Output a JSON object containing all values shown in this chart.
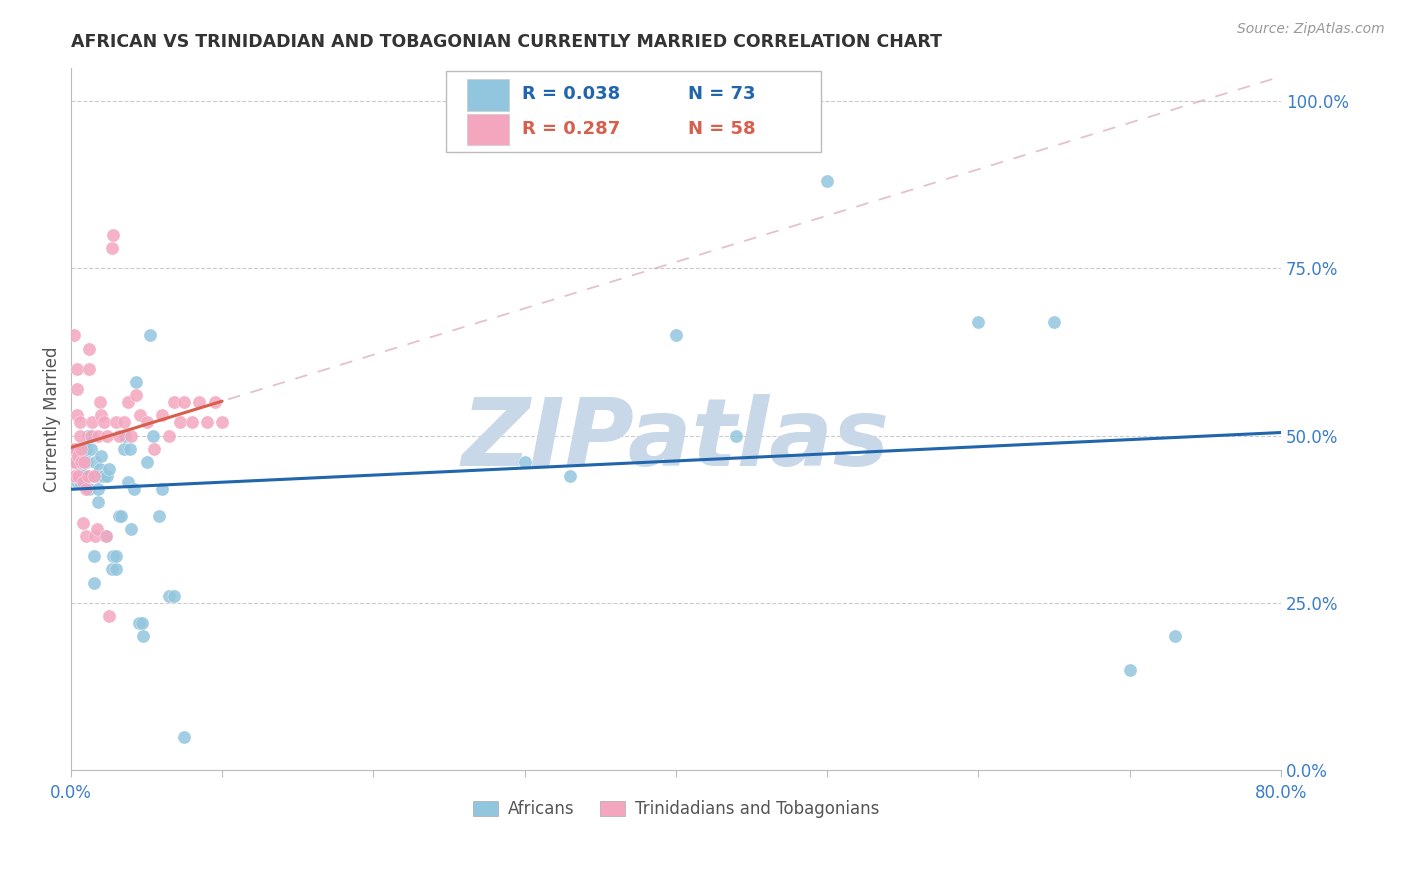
{
  "title": "AFRICAN VS TRINIDADIAN AND TOBAGONIAN CURRENTLY MARRIED CORRELATION CHART",
  "source": "Source: ZipAtlas.com",
  "ylabel": "Currently Married",
  "xlim": [
    0.0,
    0.8
  ],
  "ylim": [
    0.0,
    1.05
  ],
  "color_african": "#92c5de",
  "color_trinidadian": "#f4a6bf",
  "color_african_line": "#2166ac",
  "color_trinidadian_line": "#d6604d",
  "color_trinidadian_dashed": "#d6a0b0",
  "watermark": "ZIPatlas",
  "watermark_color": "#c8d8e8",
  "african_x": [
    0.001,
    0.002,
    0.002,
    0.003,
    0.003,
    0.004,
    0.004,
    0.004,
    0.005,
    0.005,
    0.005,
    0.006,
    0.006,
    0.006,
    0.007,
    0.007,
    0.008,
    0.008,
    0.009,
    0.009,
    0.01,
    0.01,
    0.011,
    0.012,
    0.012,
    0.013,
    0.014,
    0.015,
    0.015,
    0.016,
    0.017,
    0.018,
    0.018,
    0.019,
    0.02,
    0.02,
    0.021,
    0.022,
    0.023,
    0.024,
    0.025,
    0.027,
    0.028,
    0.03,
    0.03,
    0.032,
    0.033,
    0.035,
    0.036,
    0.038,
    0.039,
    0.04,
    0.042,
    0.043,
    0.045,
    0.047,
    0.048,
    0.05,
    0.052,
    0.054,
    0.058,
    0.06,
    0.065,
    0.068,
    0.075,
    0.3,
    0.33,
    0.4,
    0.44,
    0.5,
    0.6,
    0.65,
    0.7,
    0.73
  ],
  "african_y": [
    0.46,
    0.47,
    0.46,
    0.44,
    0.48,
    0.43,
    0.46,
    0.47,
    0.44,
    0.46,
    0.48,
    0.43,
    0.45,
    0.46,
    0.47,
    0.48,
    0.44,
    0.46,
    0.43,
    0.47,
    0.46,
    0.48,
    0.5,
    0.42,
    0.44,
    0.48,
    0.5,
    0.32,
    0.28,
    0.46,
    0.44,
    0.4,
    0.42,
    0.45,
    0.44,
    0.47,
    0.44,
    0.44,
    0.35,
    0.44,
    0.45,
    0.3,
    0.32,
    0.3,
    0.32,
    0.38,
    0.38,
    0.48,
    0.5,
    0.43,
    0.48,
    0.36,
    0.42,
    0.58,
    0.22,
    0.22,
    0.2,
    0.46,
    0.65,
    0.5,
    0.38,
    0.42,
    0.26,
    0.26,
    0.05,
    0.46,
    0.44,
    0.65,
    0.5,
    0.88,
    0.67,
    0.67,
    0.15,
    0.2
  ],
  "trinidadian_x": [
    0.001,
    0.001,
    0.002,
    0.002,
    0.002,
    0.003,
    0.003,
    0.003,
    0.004,
    0.004,
    0.004,
    0.005,
    0.005,
    0.006,
    0.006,
    0.007,
    0.007,
    0.008,
    0.008,
    0.009,
    0.01,
    0.01,
    0.011,
    0.012,
    0.012,
    0.013,
    0.014,
    0.015,
    0.016,
    0.017,
    0.018,
    0.019,
    0.02,
    0.022,
    0.023,
    0.024,
    0.025,
    0.027,
    0.028,
    0.03,
    0.032,
    0.035,
    0.038,
    0.04,
    0.043,
    0.046,
    0.05,
    0.055,
    0.06,
    0.065,
    0.068,
    0.072,
    0.075,
    0.08,
    0.085,
    0.09,
    0.095,
    0.1
  ],
  "trinidadian_y": [
    0.46,
    0.48,
    0.44,
    0.46,
    0.65,
    0.44,
    0.46,
    0.48,
    0.53,
    0.57,
    0.6,
    0.44,
    0.47,
    0.5,
    0.52,
    0.46,
    0.48,
    0.43,
    0.37,
    0.46,
    0.42,
    0.35,
    0.44,
    0.6,
    0.63,
    0.5,
    0.52,
    0.44,
    0.35,
    0.36,
    0.5,
    0.55,
    0.53,
    0.52,
    0.35,
    0.5,
    0.23,
    0.78,
    0.8,
    0.52,
    0.5,
    0.52,
    0.55,
    0.5,
    0.56,
    0.53,
    0.52,
    0.48,
    0.53,
    0.5,
    0.55,
    0.52,
    0.55,
    0.52,
    0.55,
    0.52,
    0.55,
    0.52
  ]
}
